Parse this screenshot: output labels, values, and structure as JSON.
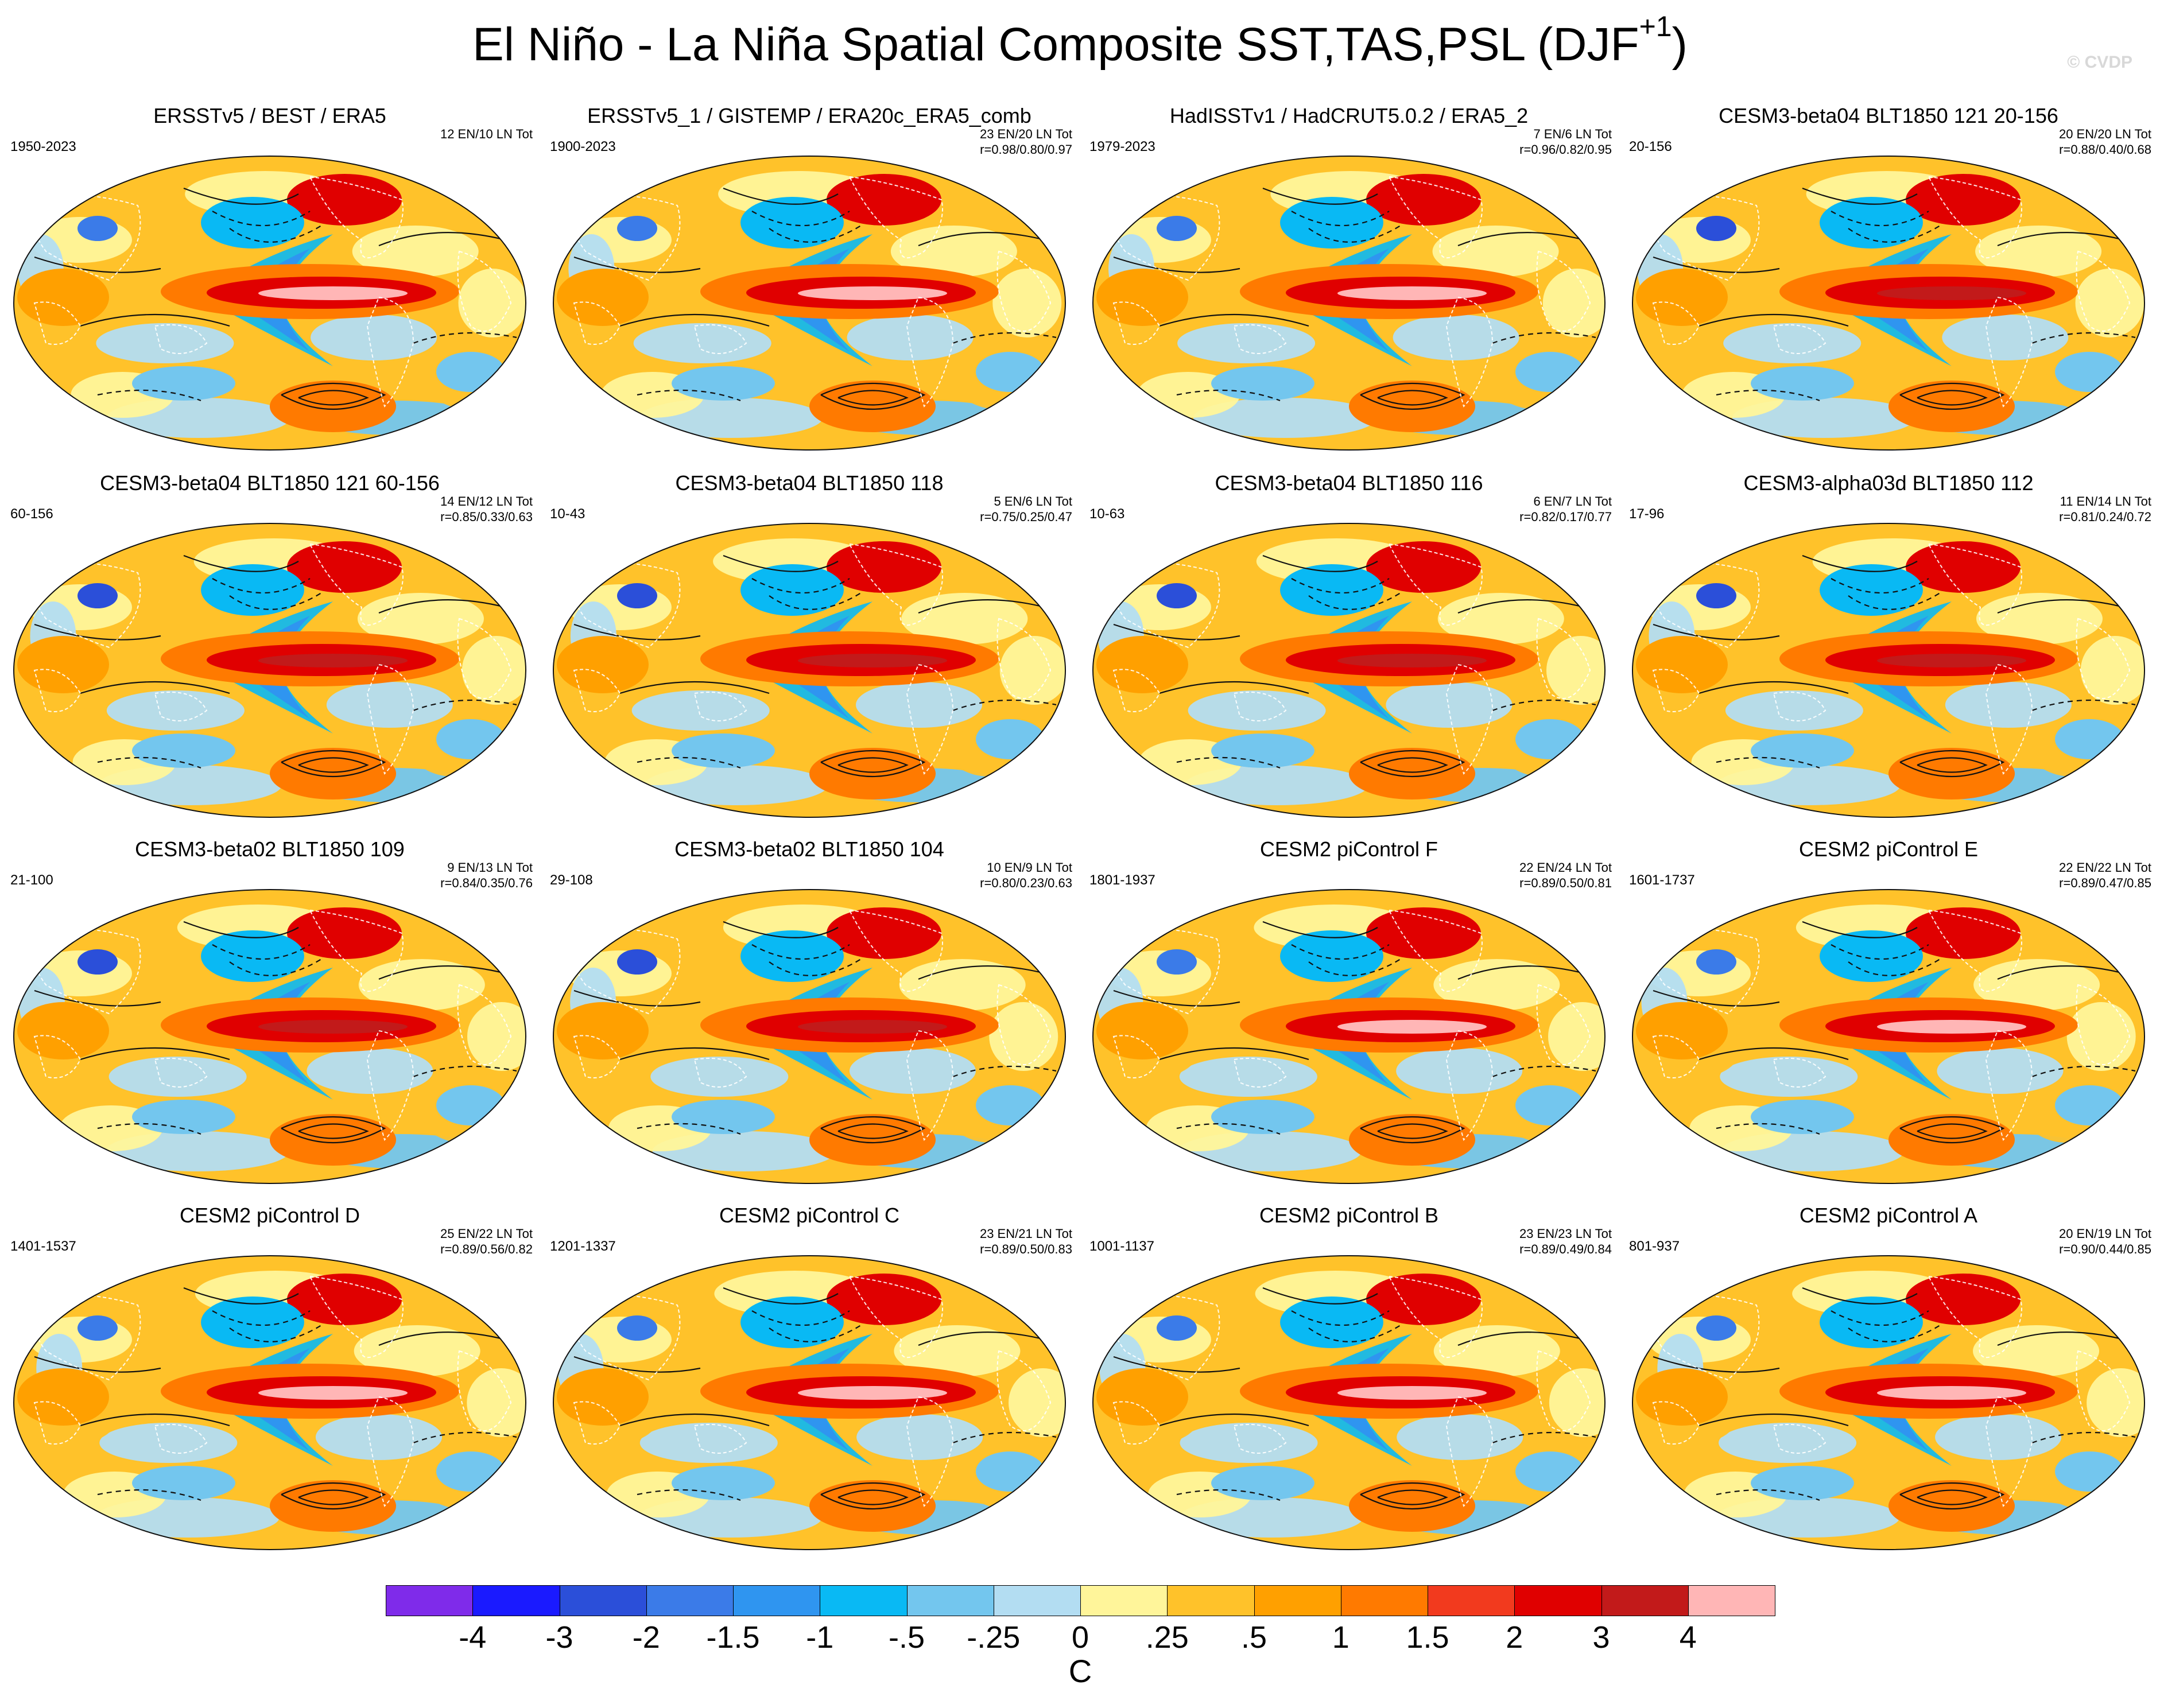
{
  "figure": {
    "title": "El Niño - La Niña Spatial Composite SST,TAS,PSL (DJF",
    "title_superscript": "+1",
    "title_close": ")",
    "watermark": "© CVDP"
  },
  "panels": [
    {
      "title": "ERSSTv5 / BEST / ERA5",
      "period": "1950-2023",
      "stats": "12 EN/10 LN Tot",
      "r": "",
      "pattern": 0.1
    },
    {
      "title": "ERSSTv5_1 / GISTEMP / ERA20c_ERA5_comb",
      "period": "1900-2023",
      "stats": "23 EN/20 LN Tot",
      "r": "r=0.98/0.80/0.97",
      "pattern": 0.05
    },
    {
      "title": "HadISSTv1 / HadCRUT5.0.2 / ERA5_2",
      "period": "1979-2023",
      "stats": "7 EN/6 LN Tot",
      "r": "r=0.96/0.82/0.95",
      "pattern": 0.15
    },
    {
      "title": "CESM3-beta04 BLT1850 121 20-156",
      "period": "20-156",
      "stats": "20 EN/20 LN Tot",
      "r": "r=0.88/0.40/0.68",
      "pattern": 0.3
    },
    {
      "title": "CESM3-beta04 BLT1850 121 60-156",
      "period": "60-156",
      "stats": "14 EN/12 LN Tot",
      "r": "r=0.85/0.33/0.63",
      "pattern": 0.35
    },
    {
      "title": "CESM3-beta04 BLT1850 118",
      "period": "10-43",
      "stats": "5 EN/6 LN Tot",
      "r": "r=0.75/0.25/0.47",
      "pattern": 0.55
    },
    {
      "title": "CESM3-beta04 BLT1850 116",
      "period": "10-63",
      "stats": "6 EN/7 LN Tot",
      "r": "r=0.82/0.17/0.77",
      "pattern": 0.4
    },
    {
      "title": "CESM3-alpha03d BLT1850 112",
      "period": "17-96",
      "stats": "11 EN/14 LN Tot",
      "r": "r=0.81/0.24/0.72",
      "pattern": 0.35
    },
    {
      "title": "CESM3-beta02 BLT1850 109",
      "period": "21-100",
      "stats": "9 EN/13 LN Tot",
      "r": "r=0.84/0.35/0.76",
      "pattern": 0.4
    },
    {
      "title": "CESM3-beta02 BLT1850 104",
      "period": "29-108",
      "stats": "10 EN/9 LN Tot",
      "r": "r=0.80/0.23/0.63",
      "pattern": 0.45
    },
    {
      "title": "CESM2 piControl F",
      "period": "1801-1937",
      "stats": "22 EN/24 LN Tot",
      "r": "r=0.89/0.50/0.81",
      "pattern": 0.2
    },
    {
      "title": "CESM2 piControl E",
      "period": "1601-1737",
      "stats": "22 EN/22 LN Tot",
      "r": "r=0.89/0.47/0.85",
      "pattern": 0.22
    },
    {
      "title": "CESM2 piControl D",
      "period": "1401-1537",
      "stats": "25 EN/22 LN Tot",
      "r": "r=0.89/0.56/0.82",
      "pattern": 0.18
    },
    {
      "title": "CESM2 piControl C",
      "period": "1201-1337",
      "stats": "23 EN/21 LN Tot",
      "r": "r=0.89/0.50/0.83",
      "pattern": 0.2
    },
    {
      "title": "CESM2 piControl B",
      "period": "1001-1137",
      "stats": "23 EN/23 LN Tot",
      "r": "r=0.89/0.49/0.84",
      "pattern": 0.21
    },
    {
      "title": "CESM2 piControl A",
      "period": "801-937",
      "stats": "20 EN/19 LN Tot",
      "r": "r=0.90/0.44/0.85",
      "pattern": 0.19
    }
  ],
  "colorbar": {
    "units": "C",
    "colors": [
      "#7f2bea",
      "#1a1aff",
      "#2b4fd9",
      "#3b7be8",
      "#2f95f0",
      "#09b9f4",
      "#73c6ee",
      "#b3ddf2",
      "#fff59a",
      "#ffc22a",
      "#ffa000",
      "#ff7a00",
      "#f23a1e",
      "#e00000",
      "#c21a1a",
      "#ffb6b6"
    ],
    "labels": [
      "-4",
      "-3",
      "-2",
      "-1.5",
      "-1",
      "-.5",
      "-.25",
      "0",
      ".25",
      ".5",
      "1",
      "1.5",
      "2",
      "3",
      "4"
    ]
  }
}
